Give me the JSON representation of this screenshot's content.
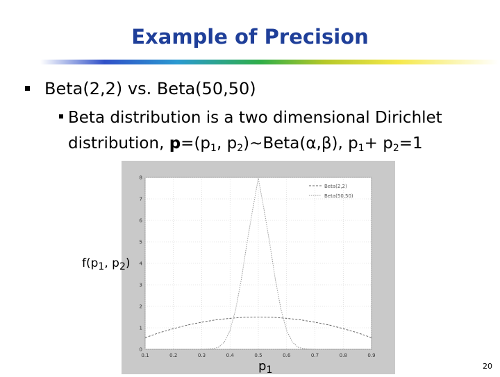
{
  "title": "Example of Precision",
  "bullet1": "Beta(2,2) vs. Beta(50,50)",
  "sub": {
    "line1": "Beta distribution is a two dimensional Dirichlet",
    "line2a": "distribution, ",
    "bold_p": "p",
    "line2b": "=(p",
    "s1": "1",
    "line2c": ", p",
    "s2": "2",
    "line2d": ")~Beta(α,β), p",
    "s3": "1",
    "line2e": "+ p",
    "s4": "2",
    "line2f": "=1"
  },
  "ylabel": {
    "a": "f(p",
    "s1": "1",
    "b": ", p",
    "s2": "2",
    "c": ")"
  },
  "xlabel": {
    "a": "p",
    "s": "1"
  },
  "page_number": "20",
  "chart_data": {
    "type": "line",
    "xlim": [
      0.1,
      0.9
    ],
    "ylim": [
      0,
      8
    ],
    "xticks": [
      "0.1",
      "0.2",
      "0.3",
      "0.4",
      "0.5",
      "0.6",
      "0.7",
      "0.8",
      "0.9"
    ],
    "yticks": [
      "0",
      "1",
      "2",
      "3",
      "4",
      "5",
      "6",
      "7",
      "8"
    ],
    "grid": true,
    "legend_position": "top-right",
    "series": [
      {
        "name": "Beta(2,2)",
        "x": [
          0.1,
          0.15,
          0.2,
          0.25,
          0.3,
          0.35,
          0.4,
          0.45,
          0.5,
          0.55,
          0.6,
          0.65,
          0.7,
          0.75,
          0.8,
          0.85,
          0.9
        ],
        "values": [
          0.54,
          0.77,
          0.96,
          1.13,
          1.26,
          1.37,
          1.44,
          1.49,
          1.5,
          1.49,
          1.44,
          1.37,
          1.26,
          1.13,
          0.96,
          0.77,
          0.54
        ]
      },
      {
        "name": "Beta(50,50)",
        "x": [
          0.3,
          0.32,
          0.34,
          0.36,
          0.38,
          0.4,
          0.42,
          0.44,
          0.46,
          0.48,
          0.5,
          0.52,
          0.54,
          0.56,
          0.58,
          0.6,
          0.62,
          0.64,
          0.66,
          0.68,
          0.7
        ],
        "values": [
          0.0,
          0.01,
          0.03,
          0.1,
          0.34,
          0.88,
          1.86,
          3.26,
          4.96,
          6.51,
          7.96,
          6.51,
          4.96,
          3.26,
          1.86,
          0.88,
          0.34,
          0.1,
          0.03,
          0.01,
          0.0
        ]
      }
    ]
  }
}
